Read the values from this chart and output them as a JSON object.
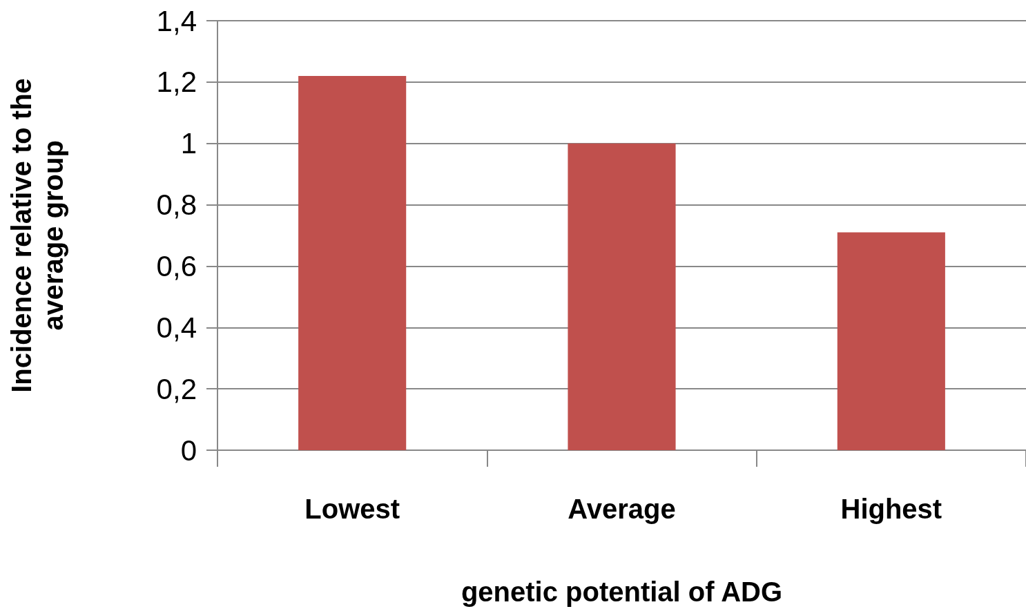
{
  "chart_data": {
    "type": "bar",
    "xlabel": "genetic potential of ADG",
    "ylabel": "Incidence relative to the average group",
    "categories": [
      "Lowest",
      "Average",
      "Highest"
    ],
    "values": [
      1.22,
      1.0,
      0.71
    ],
    "color": "#c0504d",
    "ylim": [
      0,
      1.4
    ],
    "yticks": [
      0,
      {
        "value": 0.2,
        "label": "0,2"
      },
      {
        "value": 0.4,
        "label": "0,4"
      },
      {
        "value": 0.6,
        "label": "0,6"
      },
      {
        "value": 0.8,
        "label": "0,8"
      },
      1,
      {
        "value": 1.2,
        "label": "1,2"
      },
      {
        "value": 1.4,
        "label": "1,4"
      }
    ],
    "grid": "y"
  }
}
